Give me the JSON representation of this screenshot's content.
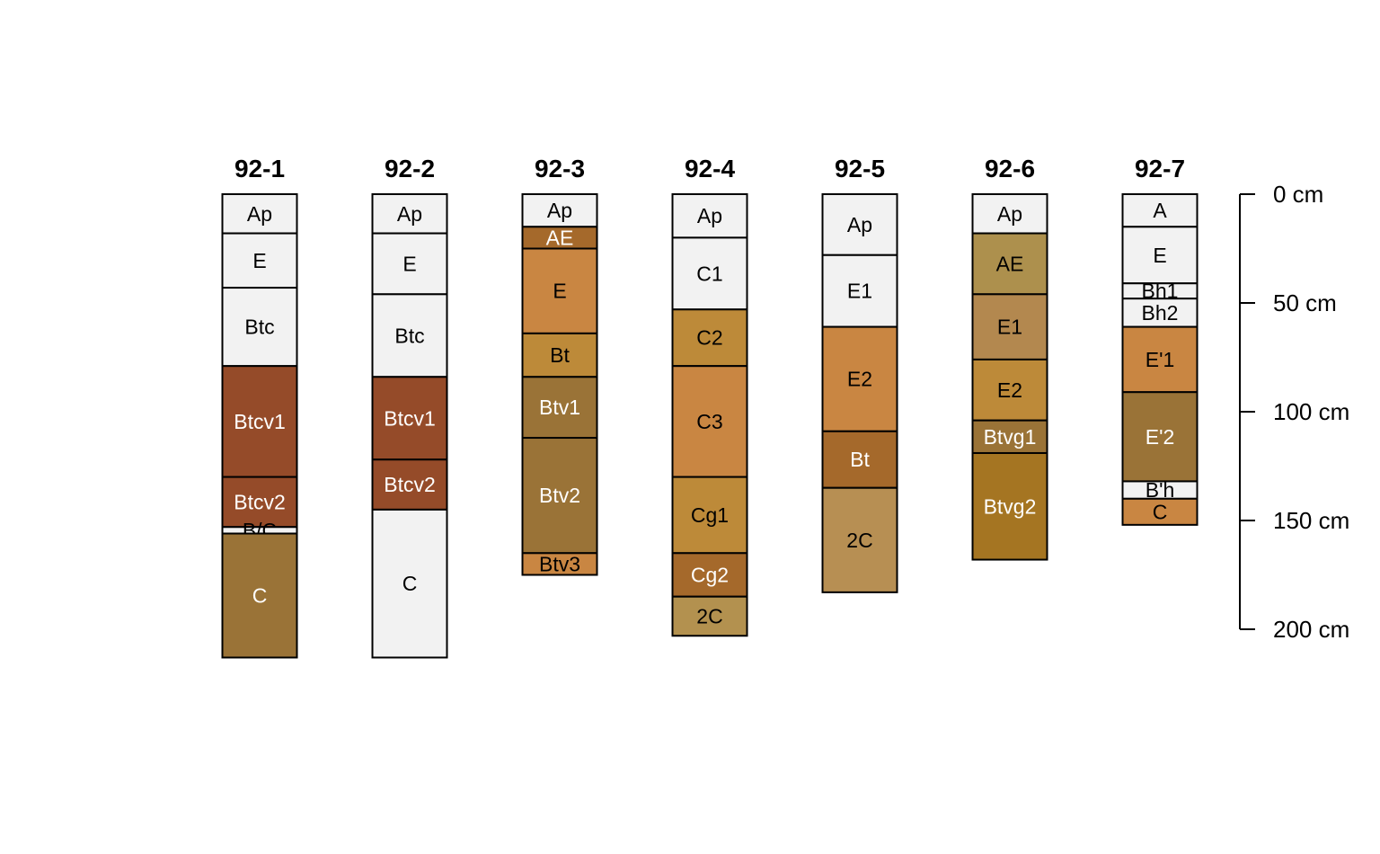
{
  "chart_data": {
    "type": "soil-profile",
    "depth_axis": {
      "unit": "cm",
      "range": [
        0,
        200
      ],
      "ticks": [
        0,
        50,
        100,
        150,
        200
      ],
      "tick_labels": [
        "0 cm",
        "50 cm",
        "100 cm",
        "150 cm",
        "200 cm"
      ]
    },
    "profiles": [
      {
        "id": "92-1",
        "horizons": [
          {
            "name": "Ap",
            "top": 0,
            "bottom": 18,
            "color": "#f2f2f2"
          },
          {
            "name": "E",
            "top": 18,
            "bottom": 43,
            "color": "#f2f2f2"
          },
          {
            "name": "Btc",
            "top": 43,
            "bottom": 79,
            "color": "#f2f2f2"
          },
          {
            "name": "Btcv1",
            "top": 79,
            "bottom": 130,
            "color": "#954b29"
          },
          {
            "name": "Btcv2",
            "top": 130,
            "bottom": 153,
            "color": "#954b29"
          },
          {
            "name": "B/C",
            "top": 153,
            "bottom": 156,
            "color": "#f2f2f2"
          },
          {
            "name": "C",
            "top": 156,
            "bottom": 213,
            "color": "#9a7337"
          }
        ]
      },
      {
        "id": "92-2",
        "horizons": [
          {
            "name": "Ap",
            "top": 0,
            "bottom": 18,
            "color": "#f2f2f2"
          },
          {
            "name": "E",
            "top": 18,
            "bottom": 46,
            "color": "#f2f2f2"
          },
          {
            "name": "Btc",
            "top": 46,
            "bottom": 84,
            "color": "#f2f2f2"
          },
          {
            "name": "Btcv1",
            "top": 84,
            "bottom": 122,
            "color": "#954b29"
          },
          {
            "name": "Btcv2",
            "top": 122,
            "bottom": 145,
            "color": "#954b29"
          },
          {
            "name": "C",
            "top": 145,
            "bottom": 213,
            "color": "#f2f2f2"
          }
        ]
      },
      {
        "id": "92-3",
        "horizons": [
          {
            "name": "Ap",
            "top": 0,
            "bottom": 15,
            "color": "#f2f2f2"
          },
          {
            "name": "AE",
            "top": 15,
            "bottom": 25,
            "color": "#a5692b"
          },
          {
            "name": "E",
            "top": 25,
            "bottom": 64,
            "color": "#c98642"
          },
          {
            "name": "Bt",
            "top": 64,
            "bottom": 84,
            "color": "#bd8a39"
          },
          {
            "name": "Btv1",
            "top": 84,
            "bottom": 112,
            "color": "#9a7337"
          },
          {
            "name": "Btv2",
            "top": 112,
            "bottom": 165,
            "color": "#9a7337"
          },
          {
            "name": "Btv3",
            "top": 165,
            "bottom": 175,
            "color": "#c98642"
          }
        ]
      },
      {
        "id": "92-4",
        "horizons": [
          {
            "name": "Ap",
            "top": 0,
            "bottom": 20,
            "color": "#f2f2f2"
          },
          {
            "name": "C1",
            "top": 20,
            "bottom": 53,
            "color": "#f2f2f2"
          },
          {
            "name": "C2",
            "top": 53,
            "bottom": 79,
            "color": "#bd8a39"
          },
          {
            "name": "C3",
            "top": 79,
            "bottom": 130,
            "color": "#c98642"
          },
          {
            "name": "Cg1",
            "top": 130,
            "bottom": 165,
            "color": "#bd8a39"
          },
          {
            "name": "Cg2",
            "top": 165,
            "bottom": 185,
            "color": "#a5692b"
          },
          {
            "name": "2C",
            "top": 185,
            "bottom": 203,
            "color": "#b3914f"
          }
        ]
      },
      {
        "id": "92-5",
        "horizons": [
          {
            "name": "Ap",
            "top": 0,
            "bottom": 28,
            "color": "#f2f2f2"
          },
          {
            "name": "E1",
            "top": 28,
            "bottom": 61,
            "color": "#f2f2f2"
          },
          {
            "name": "E2",
            "top": 61,
            "bottom": 109,
            "color": "#c98642"
          },
          {
            "name": "Bt",
            "top": 109,
            "bottom": 135,
            "color": "#a5692b"
          },
          {
            "name": "2C",
            "top": 135,
            "bottom": 183,
            "color": "#b78f53"
          }
        ]
      },
      {
        "id": "92-6",
        "horizons": [
          {
            "name": "Ap",
            "top": 0,
            "bottom": 18,
            "color": "#f2f2f2"
          },
          {
            "name": "AE",
            "top": 18,
            "bottom": 46,
            "color": "#ad904d"
          },
          {
            "name": "E1",
            "top": 46,
            "bottom": 76,
            "color": "#b3884f"
          },
          {
            "name": "E2",
            "top": 76,
            "bottom": 104,
            "color": "#bd8a39"
          },
          {
            "name": "Btvg1",
            "top": 104,
            "bottom": 119,
            "color": "#9a7337"
          },
          {
            "name": "Btvg2",
            "top": 119,
            "bottom": 168,
            "color": "#a57522"
          }
        ]
      },
      {
        "id": "92-7",
        "horizons": [
          {
            "name": "A",
            "top": 0,
            "bottom": 15,
            "color": "#f2f2f2"
          },
          {
            "name": "E",
            "top": 15,
            "bottom": 41,
            "color": "#f2f2f2"
          },
          {
            "name": "Bh1",
            "top": 41,
            "bottom": 48,
            "color": "#f2f2f2"
          },
          {
            "name": "Bh2",
            "top": 48,
            "bottom": 61,
            "color": "#f2f2f2"
          },
          {
            "name": "E'1",
            "top": 61,
            "bottom": 91,
            "color": "#c98642"
          },
          {
            "name": "E'2",
            "top": 91,
            "bottom": 132,
            "color": "#9a7337"
          },
          {
            "name": "B'h",
            "top": 132,
            "bottom": 140,
            "color": "#f2f2f2"
          },
          {
            "name": "C",
            "top": 140,
            "bottom": 152,
            "color": "#c98642"
          }
        ]
      }
    ]
  }
}
